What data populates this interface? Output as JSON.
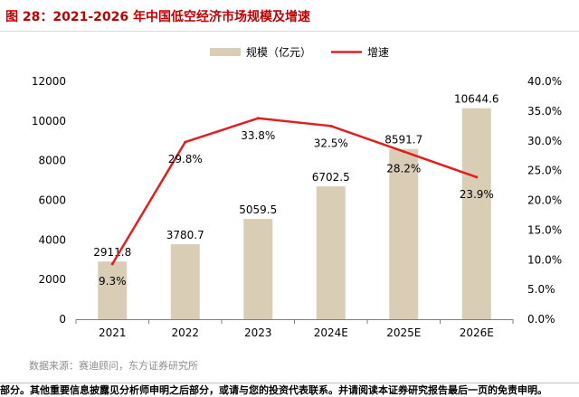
{
  "figure": {
    "title": "图 28：2021-2026 年中国低空经济市场规模及增速",
    "source": "数据来源：赛迪顾问，东方证券研究所",
    "disclaimer": "部分。其他重要信息披露见分析师申明之后部分，或请与您的投资代表联系。并请阅读本证券研究报告最后一页的免责申明。"
  },
  "colors": {
    "title": "#c00000",
    "bar": "#d9cdb5",
    "line": "#e02020"
  },
  "chart_data": {
    "type": "bar",
    "categories": [
      "2021",
      "2022",
      "2023",
      "2024E",
      "2025E",
      "2026E"
    ],
    "series": [
      {
        "name": "规模（亿元）",
        "kind": "bar",
        "axis": "left",
        "values": [
          2911.8,
          3780.7,
          5059.5,
          6702.5,
          8591.7,
          10644.6
        ],
        "labels": [
          "2911.8",
          "3780.7",
          "5059.5",
          "6702.5",
          "8591.7",
          "10644.6"
        ]
      },
      {
        "name": "增速",
        "kind": "line",
        "axis": "right",
        "values": [
          9.3,
          29.8,
          33.8,
          32.5,
          28.2,
          23.9
        ],
        "labels": [
          "9.3%",
          "29.8%",
          "33.8%",
          "32.5%",
          "28.2%",
          "23.9%"
        ]
      }
    ],
    "y_left": {
      "range": [
        0,
        12000
      ],
      "ticks": [
        "0",
        "2000",
        "4000",
        "6000",
        "8000",
        "10000",
        "12000"
      ]
    },
    "y_right": {
      "range": [
        0,
        40
      ],
      "ticks": [
        "0.0%",
        "5.0%",
        "10.0%",
        "15.0%",
        "20.0%",
        "25.0%",
        "30.0%",
        "35.0%",
        "40.0%"
      ]
    },
    "legend": "top-center",
    "grid": false
  }
}
